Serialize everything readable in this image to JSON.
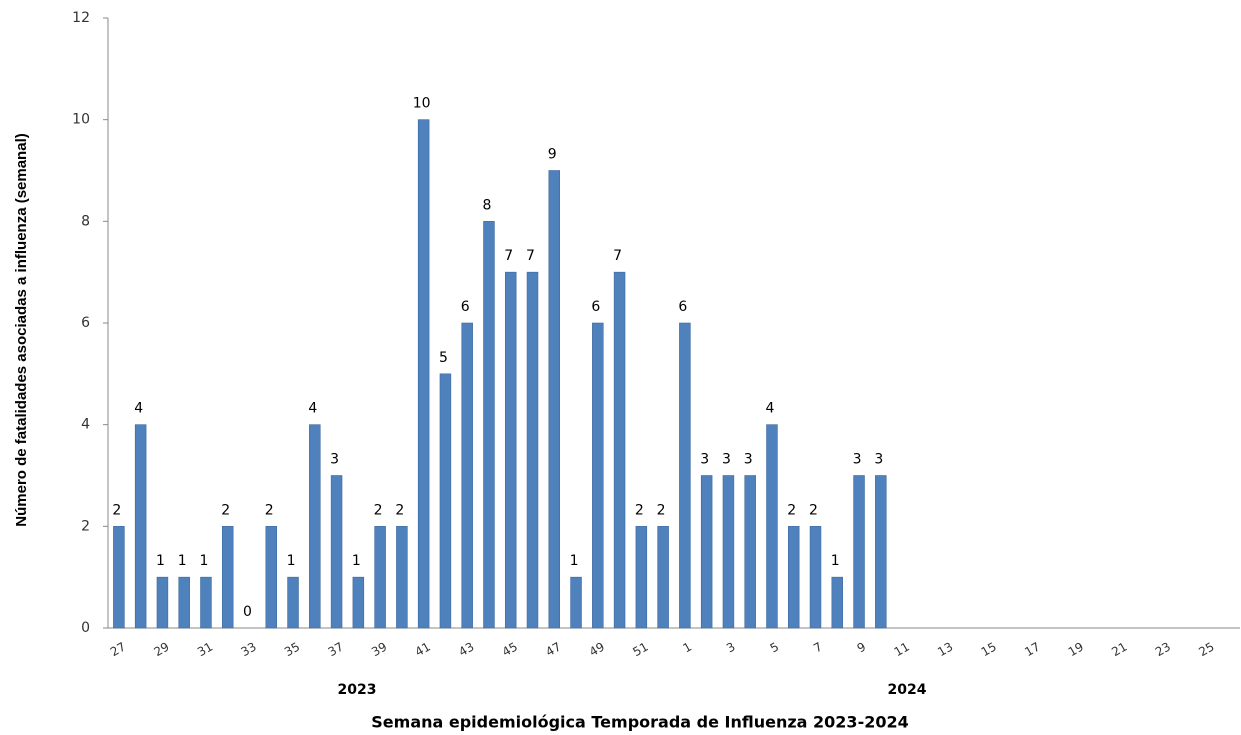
{
  "chart_data": {
    "type": "bar",
    "x_label": "Semana epidemiológica Temporada de Influenza 2023-2024",
    "y_label": "Número de fatalidades asociadas a influenza (semanal)",
    "annotations": [
      "2023",
      "2024"
    ],
    "categories": [
      27,
      null,
      29,
      null,
      31,
      null,
      33,
      null,
      35,
      null,
      37,
      null,
      39,
      null,
      41,
      null,
      43,
      null,
      45,
      null,
      47,
      null,
      49,
      null,
      51,
      null,
      1,
      null,
      3,
      null,
      5,
      null,
      7,
      null,
      9,
      null,
      11,
      null,
      13,
      null,
      15,
      null,
      17,
      null,
      19,
      null,
      21,
      null,
      23,
      null,
      25,
      null
    ],
    "values": [
      2,
      4,
      1,
      1,
      1,
      2,
      0,
      2,
      1,
      4,
      3,
      1,
      2,
      2,
      10,
      5,
      6,
      8,
      7,
      7,
      9,
      1,
      6,
      7,
      2,
      2,
      6,
      3,
      3,
      3,
      4,
      2,
      2,
      1,
      3,
      3,
      null,
      null,
      null,
      null,
      null,
      null,
      null,
      null,
      null,
      null,
      null,
      null,
      null,
      null,
      null,
      null
    ],
    "color": "#4f81bd",
    "ylim": [
      0,
      12
    ],
    "yticks": [
      0,
      2,
      4,
      6,
      8,
      10,
      12
    ],
    "grid": false
  }
}
